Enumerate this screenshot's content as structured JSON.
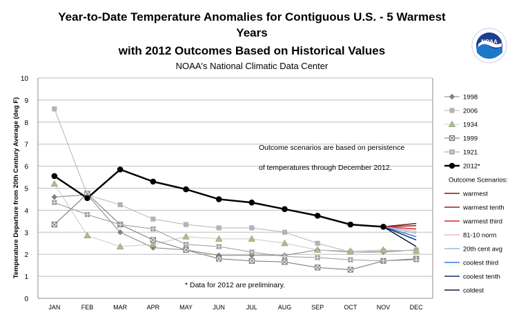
{
  "title_lines": [
    "Year-to-Date Temperature Anomalies for Contiguous U.S. - 5 Warmest",
    "Years",
    "with 2012 Outcomes Based on Historical Values"
  ],
  "subtitle": "NOAA's National Climatic Data Center",
  "logo_text": "NOAA",
  "chart_data": {
    "type": "line",
    "ylabel": "Temperature Departure from 20th Century Average (deg F)",
    "xlabel": "",
    "ylim": [
      0,
      10
    ],
    "yticks": [
      0,
      1,
      2,
      3,
      4,
      5,
      6,
      7,
      8,
      9,
      10
    ],
    "grid": "horizontal",
    "legend_position": "right",
    "categories": [
      "JAN",
      "FEB",
      "MAR",
      "APR",
      "MAY",
      "JUN",
      "JUL",
      "AUG",
      "SEP",
      "OCT",
      "NOV",
      "DEC"
    ],
    "series": [
      {
        "name": "1998",
        "color": "#808080",
        "marker": "diamond",
        "width": 1,
        "values": [
          4.6,
          4.7,
          3.0,
          2.3,
          2.2,
          1.95,
          1.95,
          1.95,
          2.2,
          2.1,
          2.1,
          2.2
        ]
      },
      {
        "name": "2006",
        "color": "#b3b3b3",
        "marker": "square",
        "width": 1,
        "values": [
          8.6,
          4.7,
          4.25,
          3.6,
          3.35,
          3.2,
          3.2,
          3.0,
          2.5,
          2.1,
          2.15,
          2.2
        ]
      },
      {
        "name": "1934",
        "color": "#c8c8c8",
        "marker": "triangle",
        "width": 1,
        "values": [
          5.2,
          2.85,
          2.35,
          2.45,
          2.8,
          2.7,
          2.7,
          2.5,
          2.2,
          2.15,
          2.2,
          2.15
        ]
      },
      {
        "name": "1999",
        "color": "#707070",
        "marker": "xsquare",
        "width": 1,
        "values": [
          3.35,
          4.75,
          3.35,
          2.65,
          2.2,
          1.8,
          1.7,
          1.65,
          1.4,
          1.3,
          1.7,
          1.8
        ]
      },
      {
        "name": "1921",
        "color": "#9a9a9a",
        "marker": "gridsquare",
        "width": 1,
        "values": [
          4.35,
          3.8,
          3.35,
          3.15,
          2.45,
          2.35,
          2.1,
          1.9,
          1.85,
          1.75,
          1.7,
          1.75
        ]
      },
      {
        "name": "2012*",
        "color": "#000000",
        "marker": "circle",
        "width": 2.5,
        "values": [
          5.55,
          4.55,
          5.85,
          5.3,
          4.95,
          4.5,
          4.35,
          4.05,
          3.75,
          3.35,
          3.25,
          null
        ]
      }
    ],
    "scenario_heading": "Outcome Scenarios:",
    "scenarios": [
      {
        "name": "warmest",
        "color": "#6b1f1f",
        "dec": 3.4
      },
      {
        "name": "warmest tenth",
        "color": "#9e1c1c",
        "dec": 3.3
      },
      {
        "name": "warmest third",
        "color": "#cc2a2a",
        "dec": 3.15
      },
      {
        "name": "81-10 norm",
        "color": "#f2b8b8",
        "dec": 3.05
      },
      {
        "name": "20th cent avg",
        "color": "#8fbfe8",
        "dec": 2.95
      },
      {
        "name": "coolest third",
        "color": "#3a7ad6",
        "dec": 2.8
      },
      {
        "name": "coolest tenth",
        "color": "#0d2e70",
        "dec": 2.65
      },
      {
        "name": "coldest",
        "color": "#0a1a3c",
        "dec": 2.35
      }
    ],
    "annotations": [
      "Outcome scenarios are based on persistence",
      "of temperatures through December 2012.",
      "* Data for 2012 are preliminary."
    ]
  }
}
